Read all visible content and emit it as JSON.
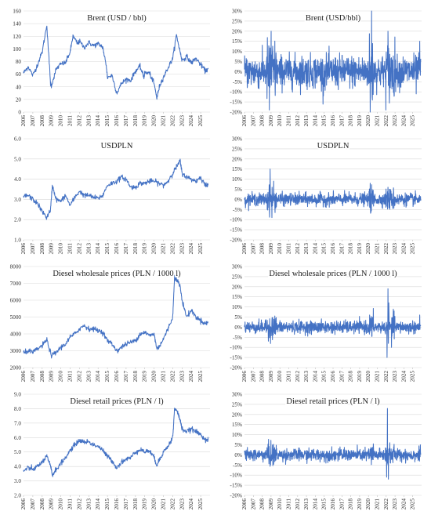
{
  "chart_data": [
    {
      "type": "line",
      "title": "Brent (USD / bbl)",
      "yticks": [
        "0",
        "20",
        "40",
        "60",
        "80",
        "100",
        "120",
        "140",
        "160"
      ],
      "ylim": [
        0,
        160
      ],
      "xlim": [
        2006,
        2026
      ],
      "xticks": [
        "2006",
        "2007",
        "2008",
        "2009",
        "2010",
        "2011",
        "2012",
        "2013",
        "2014",
        "2015",
        "2016",
        "2017",
        "2018",
        "2019",
        "2020",
        "2021",
        "2022",
        "2023",
        "2024",
        "2025"
      ],
      "series": [
        {
          "x": [
            2006,
            2006.5,
            2007,
            2007.5,
            2008,
            2008.5,
            2008.9,
            2009,
            2009.5,
            2010,
            2010.5,
            2011,
            2011.3,
            2011.8,
            2012,
            2012.5,
            2013,
            2013.5,
            2014,
            2014.5,
            2014.9,
            2015,
            2015.5,
            2016,
            2016.5,
            2017,
            2017.5,
            2018,
            2018.5,
            2018.9,
            2019,
            2019.5,
            2020,
            2020.3,
            2020.6,
            2021,
            2021.5,
            2022,
            2022.4,
            2022.8,
            2023,
            2023.5,
            2024,
            2024.5,
            2025,
            2025.5,
            2025.8
          ],
          "y": [
            62,
            72,
            58,
            75,
            95,
            138,
            45,
            42,
            68,
            76,
            78,
            95,
            120,
            108,
            112,
            102,
            110,
            105,
            108,
            103,
            70,
            55,
            58,
            30,
            45,
            52,
            50,
            65,
            72,
            55,
            62,
            62,
            45,
            22,
            42,
            55,
            70,
            85,
            122,
            95,
            82,
            88,
            78,
            85,
            75,
            65,
            68
          ]
        }
      ]
    },
    {
      "type": "line",
      "title": "Brent (USD/bbl)",
      "yticks": [
        "-20%",
        "-15%",
        "-10%",
        "-5%",
        "0%",
        "5%",
        "10%",
        "15%",
        "20%",
        "25%",
        "30%"
      ],
      "ylim": [
        -20,
        30
      ],
      "xlim": [
        2006,
        2026
      ],
      "xticks": [
        "2006",
        "2007",
        "2008",
        "2009",
        "2010",
        "2011",
        "2012",
        "2013",
        "2014",
        "2015",
        "2016",
        "2017",
        "2018",
        "2019",
        "2020",
        "2021",
        "2022",
        "2023",
        "2024",
        "2025"
      ],
      "series": [
        {
          "type": "returns",
          "spikes": [
            {
              "x": 2008.8,
              "y": -19
            },
            {
              "x": 2009.0,
              "y": 20
            },
            {
              "x": 2014.9,
              "y": -12
            },
            {
              "x": 2020.2,
              "y": -20
            },
            {
              "x": 2020.35,
              "y": 30
            },
            {
              "x": 2022.2,
              "y": 20
            },
            {
              "x": 2025.4,
              "y": -11
            },
            {
              "x": 2025.8,
              "y": 15
            }
          ]
        }
      ]
    },
    {
      "type": "line",
      "title": "USDPLN",
      "yticks": [
        "1.0",
        "2.0",
        "3.0",
        "4.0",
        "5.0",
        "6.0"
      ],
      "ylim": [
        1,
        6
      ],
      "xlim": [
        2006,
        2026
      ],
      "xticks": [
        "2006",
        "2007",
        "2008",
        "2009",
        "2010",
        "2011",
        "2012",
        "2013",
        "2014",
        "2015",
        "2016",
        "2017",
        "2018",
        "2019",
        "2020",
        "2021",
        "2022",
        "2023",
        "2024",
        "2025"
      ],
      "series": [
        {
          "x": [
            2006,
            2006.5,
            2007,
            2007.5,
            2008,
            2008.5,
            2008.9,
            2009.1,
            2009.5,
            2010,
            2010.5,
            2011,
            2011.5,
            2012,
            2012.5,
            2013,
            2013.5,
            2014,
            2014.5,
            2015,
            2015.5,
            2016,
            2016.5,
            2017,
            2017.5,
            2018,
            2018.5,
            2019,
            2019.5,
            2020,
            2020.5,
            2021,
            2021.5,
            2022,
            2022.4,
            2022.8,
            2023,
            2023.5,
            2024,
            2024.5,
            2025,
            2025.5,
            2025.8
          ],
          "y": [
            3.15,
            3.2,
            3.0,
            2.8,
            2.4,
            2.1,
            2.5,
            3.7,
            3.0,
            2.9,
            3.2,
            2.7,
            3.1,
            3.4,
            3.2,
            3.2,
            3.1,
            3.05,
            3.2,
            3.7,
            3.8,
            3.9,
            4.1,
            4.0,
            3.6,
            3.6,
            3.8,
            3.8,
            3.9,
            3.9,
            3.8,
            3.7,
            3.9,
            4.3,
            4.6,
            4.9,
            4.3,
            4.1,
            4.0,
            3.9,
            4.1,
            3.7,
            3.7
          ]
        }
      ]
    },
    {
      "type": "line",
      "title": "USDPLN",
      "yticks": [
        "-20%",
        "-15%",
        "-10%",
        "-5%",
        "0%",
        "5%",
        "10%",
        "15%",
        "20%",
        "25%",
        "30%"
      ],
      "ylim": [
        -20,
        30
      ],
      "xlim": [
        2006,
        2026
      ],
      "xticks": [
        "2006",
        "2007",
        "2008",
        "2009",
        "2010",
        "2011",
        "2012",
        "2013",
        "2014",
        "2015",
        "2016",
        "2017",
        "2018",
        "2019",
        "2020",
        "2021",
        "2022",
        "2023",
        "2024",
        "2025"
      ],
      "series": [
        {
          "type": "returns",
          "spikes": [
            {
              "x": 2008.9,
              "y": 15
            },
            {
              "x": 2009.1,
              "y": -9
            },
            {
              "x": 2009.3,
              "y": 9
            },
            {
              "x": 2020.2,
              "y": 8
            },
            {
              "x": 2022.2,
              "y": 6
            }
          ]
        }
      ]
    },
    {
      "type": "line",
      "title": "Diesel wholesale prices (PLN / 1000 l)",
      "yticks": [
        "2000",
        "3000",
        "4000",
        "5000",
        "6000",
        "7000",
        "8000"
      ],
      "ylim": [
        2000,
        8000
      ],
      "xlim": [
        2006,
        2026
      ],
      "xticks": [
        "2006",
        "2007",
        "2008",
        "2009",
        "2010",
        "2011",
        "2012",
        "2013",
        "2014",
        "2015",
        "2016",
        "2017",
        "2018",
        "2019",
        "2020",
        "2021",
        "2022",
        "2023",
        "2024",
        "2025"
      ],
      "series": [
        {
          "x": [
            2006,
            2006.5,
            2007,
            2007.5,
            2008,
            2008.5,
            2009,
            2009.5,
            2010,
            2010.5,
            2011,
            2011.5,
            2012,
            2012.5,
            2013,
            2013.5,
            2014,
            2014.5,
            2015,
            2015.5,
            2016,
            2016.5,
            2017,
            2017.5,
            2018,
            2018.5,
            2019,
            2019.5,
            2020,
            2020.3,
            2020.6,
            2021,
            2021.5,
            2022,
            2022.2,
            2022.5,
            2022.8,
            2023,
            2023.5,
            2024,
            2024.5,
            2025,
            2025.5,
            2025.8
          ],
          "y": [
            2850,
            3000,
            2900,
            3100,
            3300,
            3650,
            2700,
            2900,
            3200,
            3400,
            3800,
            4000,
            4300,
            4500,
            4300,
            4300,
            4200,
            4100,
            3600,
            3400,
            3000,
            3200,
            3400,
            3500,
            3600,
            4000,
            4100,
            3900,
            4000,
            3100,
            3300,
            3700,
            4300,
            5000,
            7400,
            7200,
            6800,
            6000,
            5000,
            5400,
            5000,
            4800,
            4600,
            4700
          ]
        }
      ]
    },
    {
      "type": "line",
      "title": "Diesel wholesale prices (PLN / 1000 l)",
      "yticks": [
        "-20%",
        "-15%",
        "-10%",
        "-5%",
        "0%",
        "5%",
        "10%",
        "15%",
        "20%",
        "25%",
        "30%"
      ],
      "ylim": [
        -20,
        30
      ],
      "xlim": [
        2006,
        2026
      ],
      "xticks": [
        "2006",
        "2007",
        "2008",
        "2009",
        "2010",
        "2011",
        "2012",
        "2013",
        "2014",
        "2015",
        "2016",
        "2017",
        "2018",
        "2019",
        "2020",
        "2021",
        "2022",
        "2023",
        "2024",
        "2025"
      ],
      "series": [
        {
          "type": "returns",
          "spikes": [
            {
              "x": 2022.1,
              "y": -15
            },
            {
              "x": 2022.2,
              "y": 19
            },
            {
              "x": 2022.3,
              "y": 12
            },
            {
              "x": 2022.6,
              "y": -10
            },
            {
              "x": 2022.9,
              "y": 8
            },
            {
              "x": 2025.8,
              "y": 6
            }
          ]
        }
      ]
    },
    {
      "type": "line",
      "title": "Diesel retail prices (PLN / l)",
      "yticks": [
        "2.0",
        "3.0",
        "4.0",
        "5.0",
        "6.0",
        "7.0",
        "8.0",
        "9.0"
      ],
      "ylim": [
        2,
        9
      ],
      "xlim": [
        2006,
        2026
      ],
      "xticks": [
        "2006",
        "2007",
        "2008",
        "2009",
        "2010",
        "2011",
        "2012",
        "2013",
        "2014",
        "2015",
        "2016",
        "2017",
        "2018",
        "2019",
        "2020",
        "2021",
        "2022",
        "2023",
        "2024",
        "2025"
      ],
      "series": [
        {
          "x": [
            2006,
            2006.5,
            2007,
            2007.5,
            2008,
            2008.5,
            2008.9,
            2009.1,
            2009.5,
            2010,
            2010.5,
            2011,
            2011.5,
            2012,
            2012.5,
            2013,
            2013.5,
            2014,
            2014.5,
            2015,
            2015.5,
            2016,
            2016.5,
            2017,
            2017.5,
            2018,
            2018.5,
            2019,
            2019.5,
            2020,
            2020.3,
            2020.6,
            2021,
            2021.5,
            2022,
            2022.2,
            2022.5,
            2022.8,
            2023,
            2023.5,
            2024,
            2024.5,
            2025,
            2025.5,
            2025.8
          ],
          "y": [
            3.7,
            3.9,
            3.8,
            4.0,
            4.3,
            4.7,
            4.0,
            3.4,
            3.8,
            4.2,
            4.6,
            5.1,
            5.5,
            5.8,
            5.7,
            5.7,
            5.5,
            5.4,
            5.1,
            4.7,
            4.4,
            3.9,
            4.3,
            4.5,
            4.6,
            5.0,
            5.2,
            5.0,
            5.1,
            4.6,
            4.1,
            4.5,
            5.0,
            5.4,
            6.0,
            8.0,
            7.8,
            7.2,
            6.6,
            6.4,
            6.6,
            6.4,
            6.2,
            5.9,
            5.8
          ]
        }
      ]
    },
    {
      "type": "line",
      "title": "Diesel retail prices (PLN / l)",
      "yticks": [
        "-20%",
        "-15%",
        "-10%",
        "-5%",
        "0%",
        "5%",
        "10%",
        "15%",
        "20%",
        "25%",
        "30%"
      ],
      "ylim": [
        -20,
        30
      ],
      "xlim": [
        2006,
        2026
      ],
      "xticks": [
        "2006",
        "2007",
        "2008",
        "2009",
        "2010",
        "2011",
        "2012",
        "2013",
        "2014",
        "2015",
        "2016",
        "2017",
        "2018",
        "2019",
        "2020",
        "2021",
        "2022",
        "2023",
        "2024",
        "2025"
      ],
      "series": [
        {
          "type": "returns",
          "spikes": [
            {
              "x": 2022.05,
              "y": -11
            },
            {
              "x": 2022.15,
              "y": 23
            },
            {
              "x": 2022.25,
              "y": -12
            },
            {
              "x": 2022.4,
              "y": 6
            },
            {
              "x": 2025.85,
              "y": 5
            }
          ]
        }
      ]
    }
  ],
  "colors": {
    "series": "#4472c4",
    "grid": "#d9d9d9",
    "text": "#222222"
  }
}
